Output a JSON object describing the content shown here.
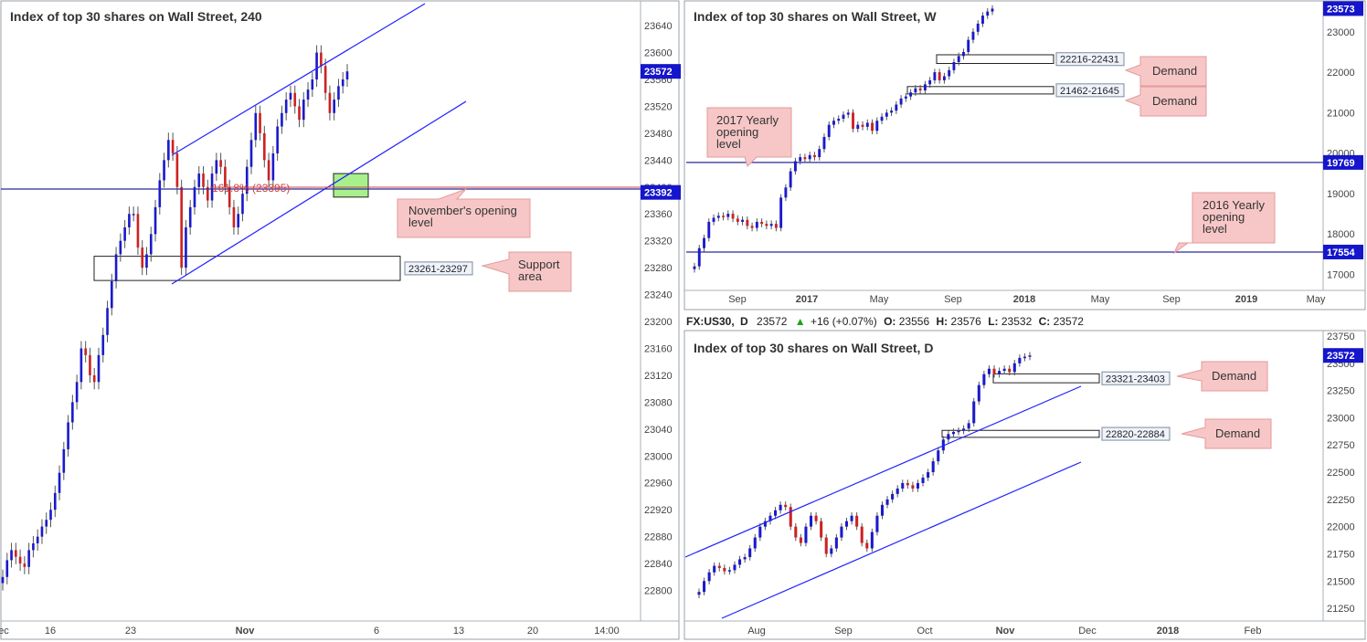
{
  "colors": {
    "up": "#1a1acc",
    "down": "#cc2222",
    "trend": "#2222ff",
    "level": "#2a2a99",
    "callout_fill": "#f7c7c7",
    "callout_border": "#e49a9a",
    "zone_fill": "#a8f08c",
    "fib": "#cc4444",
    "badge": "#1515cc"
  },
  "header": {
    "symbol": "FX:US30,",
    "timeframe": "D",
    "last": "23572",
    "change": "+16 (+0.07%)",
    "o_label": "O:",
    "o": "23556",
    "h_label": "H:",
    "h": "23576",
    "l_label": "L:",
    "l": "23532",
    "c_label": "C:",
    "c": "23572"
  },
  "chart_data": [
    {
      "id": "h4",
      "type": "candlestick",
      "title": "Index of top 30 shares on Wall Street, 240",
      "ylim": [
        22760,
        23670
      ],
      "y_ticks": [
        23640,
        23600,
        23560,
        23520,
        23480,
        23440,
        23400,
        23360,
        23320,
        23280,
        23240,
        23200,
        23160,
        23120,
        23080,
        23040,
        23000,
        22960,
        22920,
        22880,
        22840,
        22800
      ],
      "x_ticks": [
        "16",
        "23",
        "Nov",
        "6",
        "13",
        "20",
        "14:00",
        "Dec"
      ],
      "price_badges": [
        {
          "label": "23572",
          "value": 23572
        },
        {
          "label": "23392",
          "value": 23392
        }
      ],
      "zones": [
        {
          "label": "23261-23297",
          "low": 23261,
          "high": 23297
        },
        {
          "label": "",
          "low": 23385,
          "high": 23420
        }
      ],
      "fib_label": "161.8% (23395)",
      "callouts": [
        {
          "key": "novopen",
          "lines": [
            "November's opening",
            "level"
          ]
        },
        {
          "key": "support",
          "lines": [
            "Support",
            "area"
          ]
        }
      ],
      "closes": [
        22820,
        22845,
        22860,
        22850,
        22840,
        22835,
        22860,
        22870,
        22880,
        22895,
        22905,
        22920,
        22945,
        22975,
        23010,
        23050,
        23080,
        23110,
        23160,
        23150,
        23120,
        23110,
        23150,
        23180,
        23220,
        23260,
        23300,
        23320,
        23340,
        23360,
        23360,
        23310,
        23280,
        23300,
        23330,
        23370,
        23410,
        23440,
        23470,
        23450,
        23400,
        23280,
        23340,
        23370,
        23400,
        23420,
        23400,
        23380,
        23420,
        23440,
        23430,
        23400,
        23370,
        23340,
        23360,
        23390,
        23430,
        23470,
        23510,
        23480,
        23440,
        23410,
        23450,
        23490,
        23510,
        23530,
        23540,
        23520,
        23500,
        23530,
        23545,
        23560,
        23600,
        23580,
        23540,
        23510,
        23530,
        23550,
        23560,
        23572
      ]
    },
    {
      "id": "weekly",
      "type": "candlestick",
      "title": "Index of top 30 shares on Wall Street, W",
      "ylim": [
        16650,
        23650
      ],
      "y_ticks": [
        23000,
        22000,
        21000,
        20000,
        19000,
        18000,
        17000
      ],
      "x_ticks": [
        "Sep",
        "2017",
        "May",
        "Sep",
        "2018",
        "May",
        "Sep",
        "2019",
        "May"
      ],
      "price_badges": [
        {
          "label": "23573",
          "value": 23573
        },
        {
          "label": "19769",
          "value": 19769
        },
        {
          "label": "17554",
          "value": 17554
        }
      ],
      "zones": [
        {
          "label": "22216-22431",
          "low": 22216,
          "high": 22431
        },
        {
          "label": "21462-21645",
          "low": 21462,
          "high": 21645
        }
      ],
      "callouts": [
        {
          "key": "yearly2017",
          "lines": [
            "2017 Yearly",
            "opening",
            "level"
          ]
        },
        {
          "key": "yearly2016",
          "lines": [
            "2016 Yearly",
            "opening",
            "level"
          ]
        },
        {
          "key": "demand1",
          "lines": [
            "Demand"
          ]
        },
        {
          "key": "demand2",
          "lines": [
            "Demand"
          ]
        }
      ],
      "closes": [
        17200,
        17650,
        17900,
        18300,
        18400,
        18450,
        18420,
        18500,
        18380,
        18300,
        18350,
        18200,
        18150,
        18300,
        18250,
        18200,
        18250,
        18150,
        18900,
        19150,
        19550,
        19800,
        19900,
        19850,
        19950,
        19900,
        20100,
        20400,
        20700,
        20800,
        20850,
        20950,
        21000,
        20600,
        20700,
        20650,
        20750,
        20550,
        20800,
        20900,
        21000,
        21050,
        21200,
        21350,
        21400,
        21500,
        21600,
        21550,
        21700,
        21800,
        22000,
        21800,
        21900,
        22050,
        22250,
        22400,
        22500,
        22800,
        23000,
        23200,
        23400,
        23500,
        23573
      ]
    },
    {
      "id": "daily",
      "type": "candlestick",
      "title": "Index of top 30 shares on Wall Street, D",
      "ylim": [
        21150,
        23750
      ],
      "y_ticks": [
        23750,
        23500,
        23250,
        23000,
        22750,
        22500,
        22250,
        22000,
        21750,
        21500,
        21250
      ],
      "x_ticks": [
        "Aug",
        "Sep",
        "Oct",
        "Nov",
        "Dec",
        "2018",
        "Feb"
      ],
      "price_badges": [
        {
          "label": "23572",
          "value": 23572
        }
      ],
      "zones": [
        {
          "label": "23321-23403",
          "low": 23321,
          "high": 23403
        },
        {
          "label": "22820-22884",
          "low": 22820,
          "high": 22884
        }
      ],
      "callouts": [
        {
          "key": "demandA",
          "lines": [
            "Demand"
          ]
        },
        {
          "key": "demandB",
          "lines": [
            "Demand"
          ]
        }
      ],
      "closes": [
        21400,
        21500,
        21580,
        21640,
        21620,
        21590,
        21600,
        21650,
        21700,
        21720,
        21800,
        21900,
        22000,
        22050,
        22100,
        22150,
        22200,
        22180,
        22000,
        21900,
        21850,
        22000,
        22100,
        22050,
        21900,
        21750,
        21800,
        21900,
        22000,
        22050,
        22100,
        22000,
        21850,
        21800,
        21950,
        22100,
        22200,
        22250,
        22300,
        22350,
        22400,
        22380,
        22350,
        22400,
        22450,
        22500,
        22600,
        22700,
        22800,
        22850,
        22870,
        22880,
        22900,
        22950,
        23150,
        23300,
        23400,
        23450,
        23400,
        23430,
        23450,
        23420,
        23500,
        23550,
        23560,
        23572
      ]
    }
  ]
}
